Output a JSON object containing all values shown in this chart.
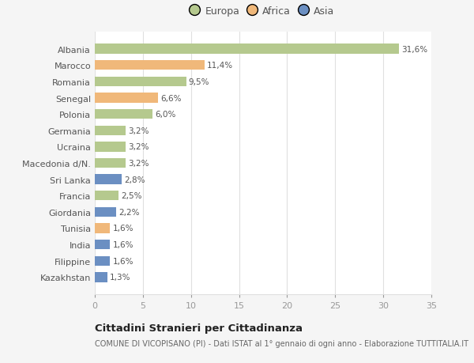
{
  "categories": [
    "Albania",
    "Marocco",
    "Romania",
    "Senegal",
    "Polonia",
    "Germania",
    "Ucraina",
    "Macedonia d/N.",
    "Sri Lanka",
    "Francia",
    "Giordania",
    "Tunisia",
    "India",
    "Filippine",
    "Kazakhstan"
  ],
  "values": [
    31.6,
    11.4,
    9.5,
    6.6,
    6.0,
    3.2,
    3.2,
    3.2,
    2.8,
    2.5,
    2.2,
    1.6,
    1.6,
    1.6,
    1.3
  ],
  "labels": [
    "31,6%",
    "11,4%",
    "9,5%",
    "6,6%",
    "6,0%",
    "3,2%",
    "3,2%",
    "3,2%",
    "2,8%",
    "2,5%",
    "2,2%",
    "1,6%",
    "1,6%",
    "1,6%",
    "1,3%"
  ],
  "continent": [
    "Europa",
    "Africa",
    "Europa",
    "Africa",
    "Europa",
    "Europa",
    "Europa",
    "Europa",
    "Asia",
    "Europa",
    "Asia",
    "Africa",
    "Asia",
    "Asia",
    "Asia"
  ],
  "colors": {
    "Europa": "#b5c98e",
    "Africa": "#f0b87a",
    "Asia": "#6b8fc2"
  },
  "legend_labels": [
    "Europa",
    "Africa",
    "Asia"
  ],
  "xlim": [
    0,
    35
  ],
  "xticks": [
    0,
    5,
    10,
    15,
    20,
    25,
    30,
    35
  ],
  "title": "Cittadini Stranieri per Cittadinanza",
  "subtitle": "COMUNE DI VICOPISANO (PI) - Dati ISTAT al 1° gennaio di ogni anno - Elaborazione TUTTITALIA.IT",
  "bg_color": "#f5f5f5",
  "plot_bg_color": "#ffffff",
  "grid_color": "#e0e0e0",
  "label_color": "#555555",
  "tick_color": "#999999"
}
